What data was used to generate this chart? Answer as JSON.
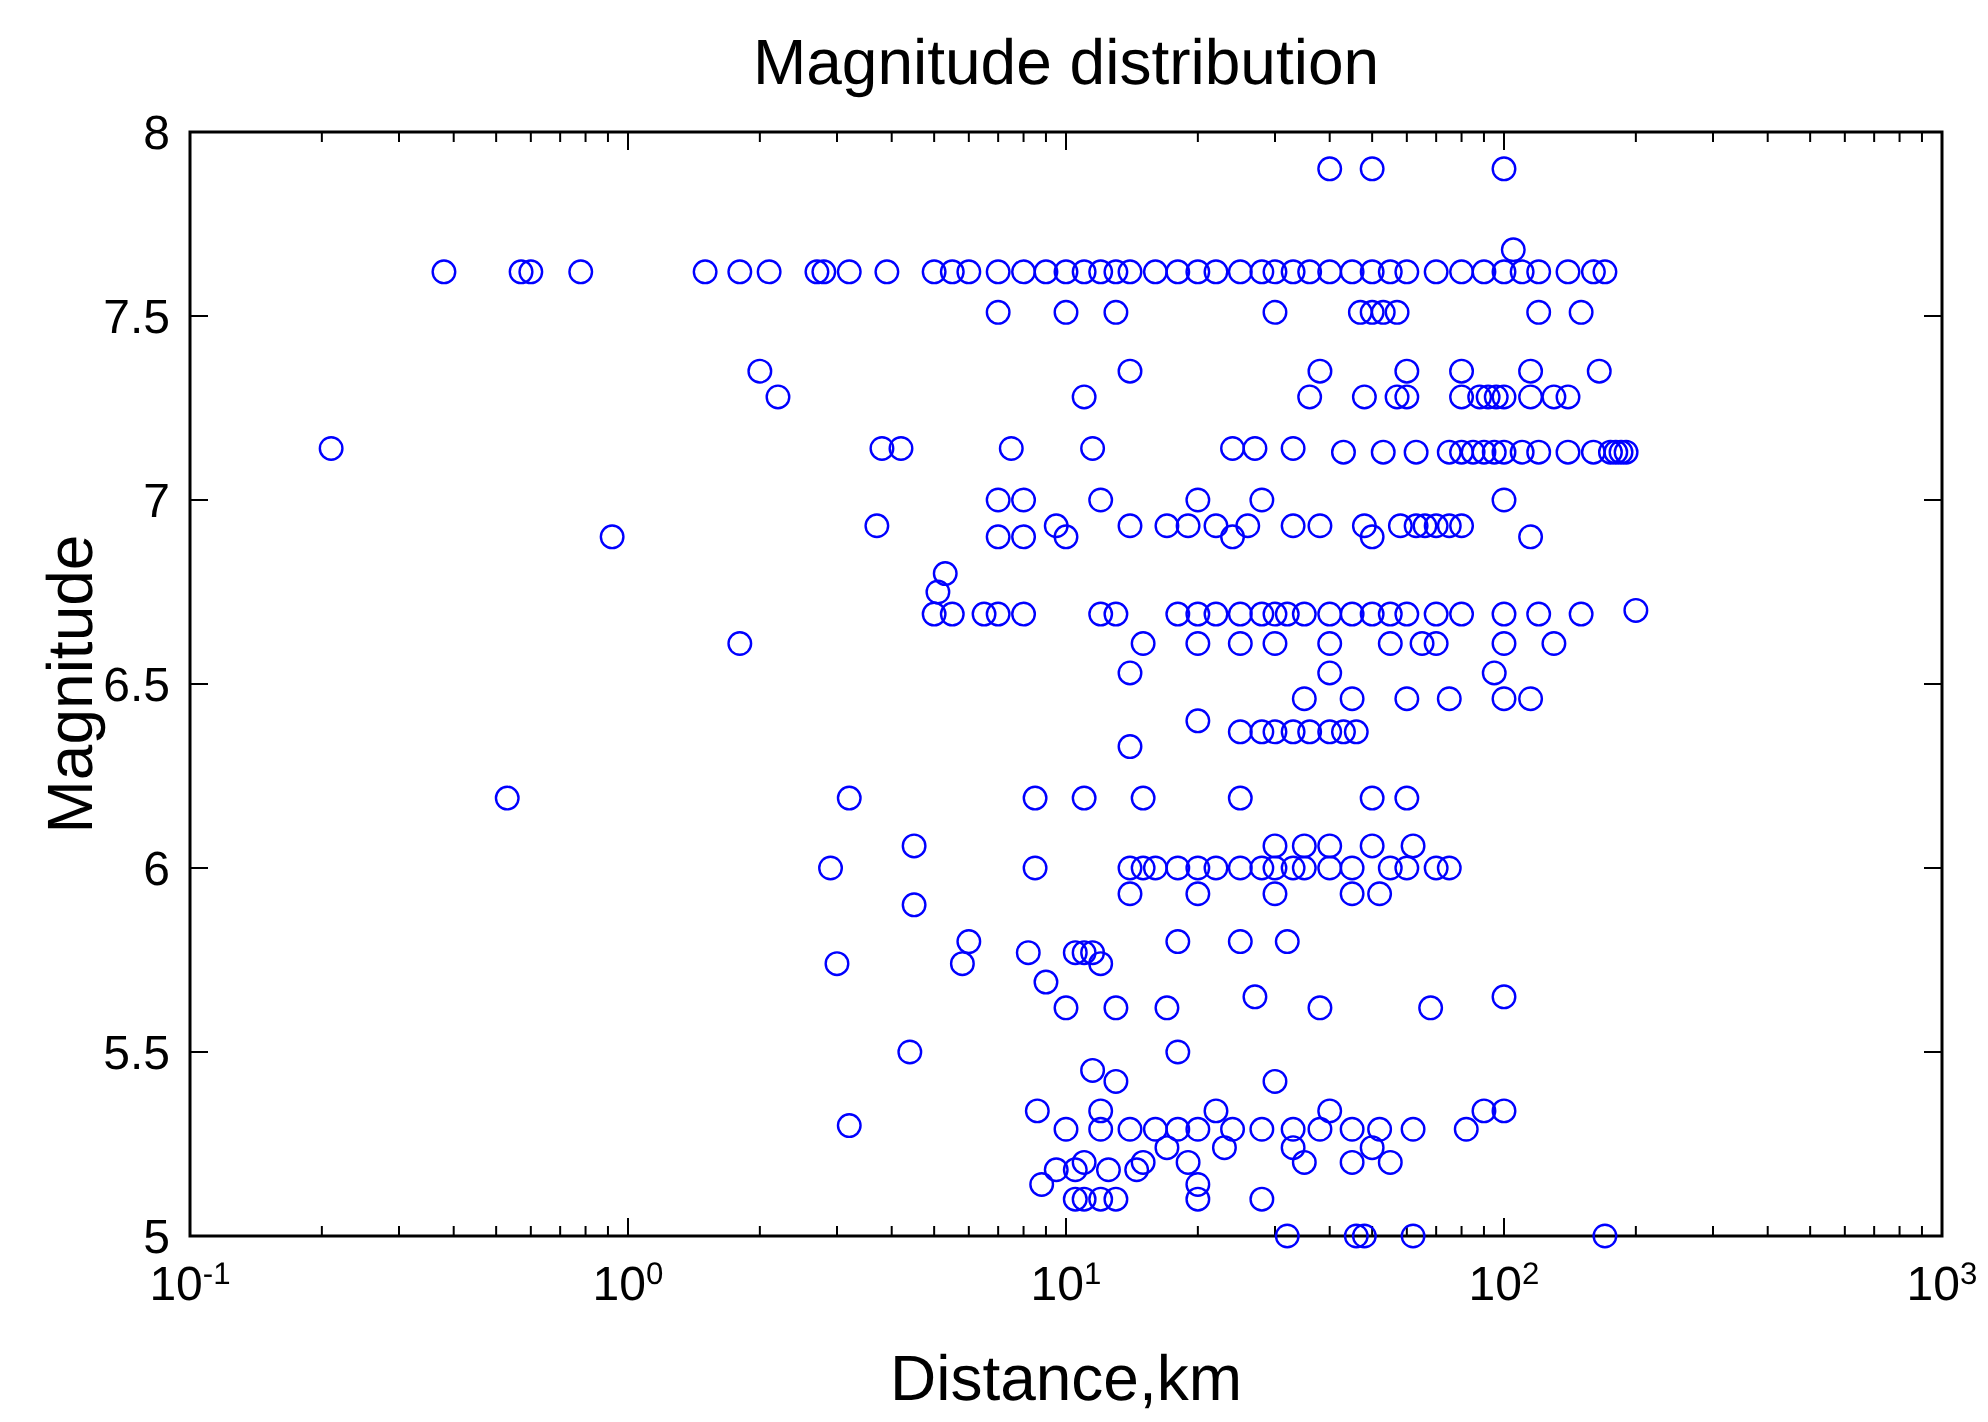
{
  "chart_data": {
    "type": "scatter",
    "title": "Magnitude distribution",
    "xlabel": "Distance,km",
    "ylabel": "Magnitude",
    "log": "x",
    "marker": "circle",
    "grid": false,
    "xlim": [
      0.1,
      1000
    ],
    "ylim": [
      5,
      8
    ],
    "xticks": [
      {
        "value": 0.1,
        "label": "10$^{-1}$"
      },
      {
        "value": 0.2,
        "label": null
      },
      {
        "value": 0.3,
        "label": null
      },
      {
        "value": 0.4,
        "label": null
      },
      {
        "value": 0.5,
        "label": null
      },
      {
        "value": 0.6,
        "label": null
      },
      {
        "value": 0.7,
        "label": null
      },
      {
        "value": 0.8,
        "label": null
      },
      {
        "value": 0.9,
        "label": null
      },
      {
        "value": 1,
        "label": "10$^{0}$"
      },
      {
        "value": 2,
        "label": null
      },
      {
        "value": 3,
        "label": null
      },
      {
        "value": 4,
        "label": null
      },
      {
        "value": 5,
        "label": null
      },
      {
        "value": 6,
        "label": null
      },
      {
        "value": 7,
        "label": null
      },
      {
        "value": 8,
        "label": null
      },
      {
        "value": 9,
        "label": null
      },
      {
        "value": 10,
        "label": "10$^{1}$"
      },
      {
        "value": 20,
        "label": null
      },
      {
        "value": 30,
        "label": null
      },
      {
        "value": 40,
        "label": null
      },
      {
        "value": 50,
        "label": null
      },
      {
        "value": 60,
        "label": null
      },
      {
        "value": 70,
        "label": null
      },
      {
        "value": 80,
        "label": null
      },
      {
        "value": 90,
        "label": null
      },
      {
        "value": 100,
        "label": "10$^{2}$"
      },
      {
        "value": 200,
        "label": null
      },
      {
        "value": 300,
        "label": null
      },
      {
        "value": 400,
        "label": null
      },
      {
        "value": 500,
        "label": null
      },
      {
        "value": 600,
        "label": null
      },
      {
        "value": 700,
        "label": null
      },
      {
        "value": 800,
        "label": null
      },
      {
        "value": 900,
        "label": null
      },
      {
        "value": 1000,
        "label": "10$^{3}$"
      }
    ],
    "yticks": [
      5,
      5.5,
      6,
      6.5,
      7,
      7.5,
      8
    ],
    "series": [
      {
        "color": "#0000ff",
        "x": [
          0.38,
          0.57,
          0.6,
          0.78,
          1.5,
          1.8,
          2.1,
          2.7,
          2.8,
          3.2,
          3.9,
          5,
          5.5,
          6,
          7,
          8,
          9,
          10,
          11,
          12,
          13,
          14,
          16,
          18,
          20,
          22,
          25,
          28,
          30,
          33,
          36,
          40,
          45,
          50,
          55,
          60,
          70,
          80,
          90,
          100,
          110,
          120,
          140,
          160,
          170
        ],
        "values": [
          7.62,
          7.62,
          7.62,
          7.62,
          7.62,
          7.62,
          7.62,
          7.62,
          7.62,
          7.62,
          7.62,
          7.62,
          7.62,
          7.62,
          7.62,
          7.62,
          7.62,
          7.62,
          7.62,
          7.62,
          7.62,
          7.62,
          7.62,
          7.62,
          7.62,
          7.62,
          7.62,
          7.62,
          7.62,
          7.62,
          7.62,
          7.62,
          7.62,
          7.62,
          7.62,
          7.62,
          7.62,
          7.62,
          7.62,
          7.62,
          7.62,
          7.62,
          7.62,
          7.62,
          7.62
        ]
      },
      {
        "color": "#0000ff",
        "x": [
          40,
          50,
          100,
          105,
          7,
          10,
          13,
          30,
          47,
          50,
          53,
          57,
          120,
          150,
          2,
          14,
          38,
          60,
          80,
          115,
          165,
          2.2,
          11,
          36,
          48,
          57,
          60,
          80,
          88,
          92,
          96,
          100,
          115,
          130,
          140
        ],
        "values": [
          7.9,
          7.9,
          7.9,
          7.68,
          7.51,
          7.51,
          7.51,
          7.51,
          7.51,
          7.51,
          7.51,
          7.51,
          7.51,
          7.51,
          7.35,
          7.35,
          7.35,
          7.35,
          7.35,
          7.35,
          7.35,
          7.28,
          7.28,
          7.28,
          7.28,
          7.28,
          7.28,
          7.28,
          7.28,
          7.28,
          7.28,
          7.28,
          7.28,
          7.28,
          7.28
        ]
      },
      {
        "color": "#0000ff",
        "x": [
          0.21,
          3.8,
          4.2,
          7.5,
          11.5,
          24,
          27,
          33,
          43,
          53,
          63,
          75,
          80,
          85,
          90,
          95,
          100,
          110,
          120,
          140,
          160,
          175,
          180,
          185,
          190,
          7,
          8,
          12,
          20,
          28,
          100,
          3.7,
          9.5,
          14,
          17,
          19,
          22,
          26,
          33,
          38,
          48,
          58,
          63,
          66,
          70,
          75,
          80,
          0.92,
          7,
          8,
          10,
          24,
          50,
          115
        ],
        "values": [
          7.14,
          7.14,
          7.14,
          7.14,
          7.14,
          7.14,
          7.14,
          7.14,
          7.13,
          7.13,
          7.13,
          7.13,
          7.13,
          7.13,
          7.13,
          7.13,
          7.13,
          7.13,
          7.13,
          7.13,
          7.13,
          7.13,
          7.13,
          7.13,
          7.13,
          7.0,
          7.0,
          7.0,
          7.0,
          7.0,
          7.0,
          6.93,
          6.93,
          6.93,
          6.93,
          6.93,
          6.93,
          6.93,
          6.93,
          6.93,
          6.93,
          6.93,
          6.93,
          6.93,
          6.93,
          6.93,
          6.93,
          6.9,
          6.9,
          6.9,
          6.9,
          6.9,
          6.9,
          6.9
        ]
      },
      {
        "color": "#0000ff",
        "x": [
          5.3,
          5.1,
          5,
          5.5,
          6.5,
          7,
          8,
          12,
          13,
          18,
          20,
          22,
          25,
          28,
          30,
          32,
          35,
          40,
          45,
          50,
          55,
          60,
          70,
          80,
          100,
          120,
          150,
          200,
          1.8,
          15,
          20,
          25,
          30,
          40,
          55,
          65,
          70,
          100,
          130,
          14,
          40,
          95,
          35,
          45,
          60,
          75,
          100,
          115,
          20,
          25,
          28,
          30,
          33,
          36,
          40,
          43,
          46,
          14
        ],
        "values": [
          6.8,
          6.75,
          6.69,
          6.69,
          6.69,
          6.69,
          6.69,
          6.69,
          6.69,
          6.69,
          6.69,
          6.69,
          6.69,
          6.69,
          6.69,
          6.69,
          6.69,
          6.69,
          6.69,
          6.69,
          6.69,
          6.69,
          6.69,
          6.69,
          6.69,
          6.69,
          6.69,
          6.7,
          6.61,
          6.61,
          6.61,
          6.61,
          6.61,
          6.61,
          6.61,
          6.61,
          6.61,
          6.61,
          6.61,
          6.53,
          6.53,
          6.53,
          6.46,
          6.46,
          6.46,
          6.46,
          6.46,
          6.46,
          6.4,
          6.37,
          6.37,
          6.37,
          6.37,
          6.37,
          6.37,
          6.37,
          6.37,
          6.33
        ]
      },
      {
        "color": "#0000ff",
        "x": [
          0.53,
          3.2,
          8.5,
          11,
          15,
          25,
          50,
          60,
          4.5,
          30,
          35,
          40,
          50,
          62,
          2.9,
          8.5,
          14,
          15,
          16,
          18,
          20,
          22,
          25,
          28,
          30,
          33,
          35,
          40,
          45,
          55,
          60,
          70,
          75,
          14,
          20,
          30,
          45,
          52,
          4.5,
          6,
          18,
          25,
          32,
          8.2,
          10.5,
          11,
          11.5,
          3,
          5.8,
          12,
          9,
          27,
          100,
          10,
          13,
          17,
          38,
          68,
          4.4,
          18
        ],
        "values": [
          6.19,
          6.19,
          6.19,
          6.19,
          6.19,
          6.19,
          6.19,
          6.19,
          6.06,
          6.06,
          6.06,
          6.06,
          6.06,
          6.06,
          6.0,
          6.0,
          6.0,
          6.0,
          6.0,
          6.0,
          6.0,
          6.0,
          6.0,
          6.0,
          6.0,
          6.0,
          6.0,
          6.0,
          6.0,
          6.0,
          6.0,
          6.0,
          6.0,
          5.93,
          5.93,
          5.93,
          5.93,
          5.93,
          5.9,
          5.8,
          5.8,
          5.8,
          5.8,
          5.77,
          5.77,
          5.77,
          5.77,
          5.74,
          5.74,
          5.74,
          5.69,
          5.65,
          5.65,
          5.62,
          5.62,
          5.62,
          5.62,
          5.62,
          5.5,
          5.5
        ]
      },
      {
        "color": "#0000ff",
        "x": [
          11.5,
          13,
          30,
          8.6,
          12,
          22,
          40,
          90,
          100,
          10,
          12,
          14,
          16,
          18,
          20,
          24,
          28,
          33,
          38,
          45,
          52,
          62,
          82,
          3.2,
          17,
          23,
          33,
          50,
          11,
          15,
          19,
          35,
          45,
          55,
          9.5,
          10.5,
          12.5,
          14.5,
          8.8,
          20,
          10.5,
          11,
          12,
          13,
          20,
          28,
          32,
          46,
          48,
          62,
          170
        ],
        "values": [
          5.45,
          5.42,
          5.42,
          5.34,
          5.34,
          5.34,
          5.34,
          5.34,
          5.34,
          5.29,
          5.29,
          5.29,
          5.29,
          5.29,
          5.29,
          5.29,
          5.29,
          5.29,
          5.29,
          5.29,
          5.29,
          5.29,
          5.29,
          5.3,
          5.24,
          5.24,
          5.24,
          5.24,
          5.2,
          5.2,
          5.2,
          5.2,
          5.2,
          5.2,
          5.18,
          5.18,
          5.18,
          5.18,
          5.14,
          5.14,
          5.1,
          5.1,
          5.1,
          5.1,
          5.1,
          5.1,
          5.0,
          5.0,
          5.0,
          5.0,
          5.0
        ]
      }
    ]
  }
}
